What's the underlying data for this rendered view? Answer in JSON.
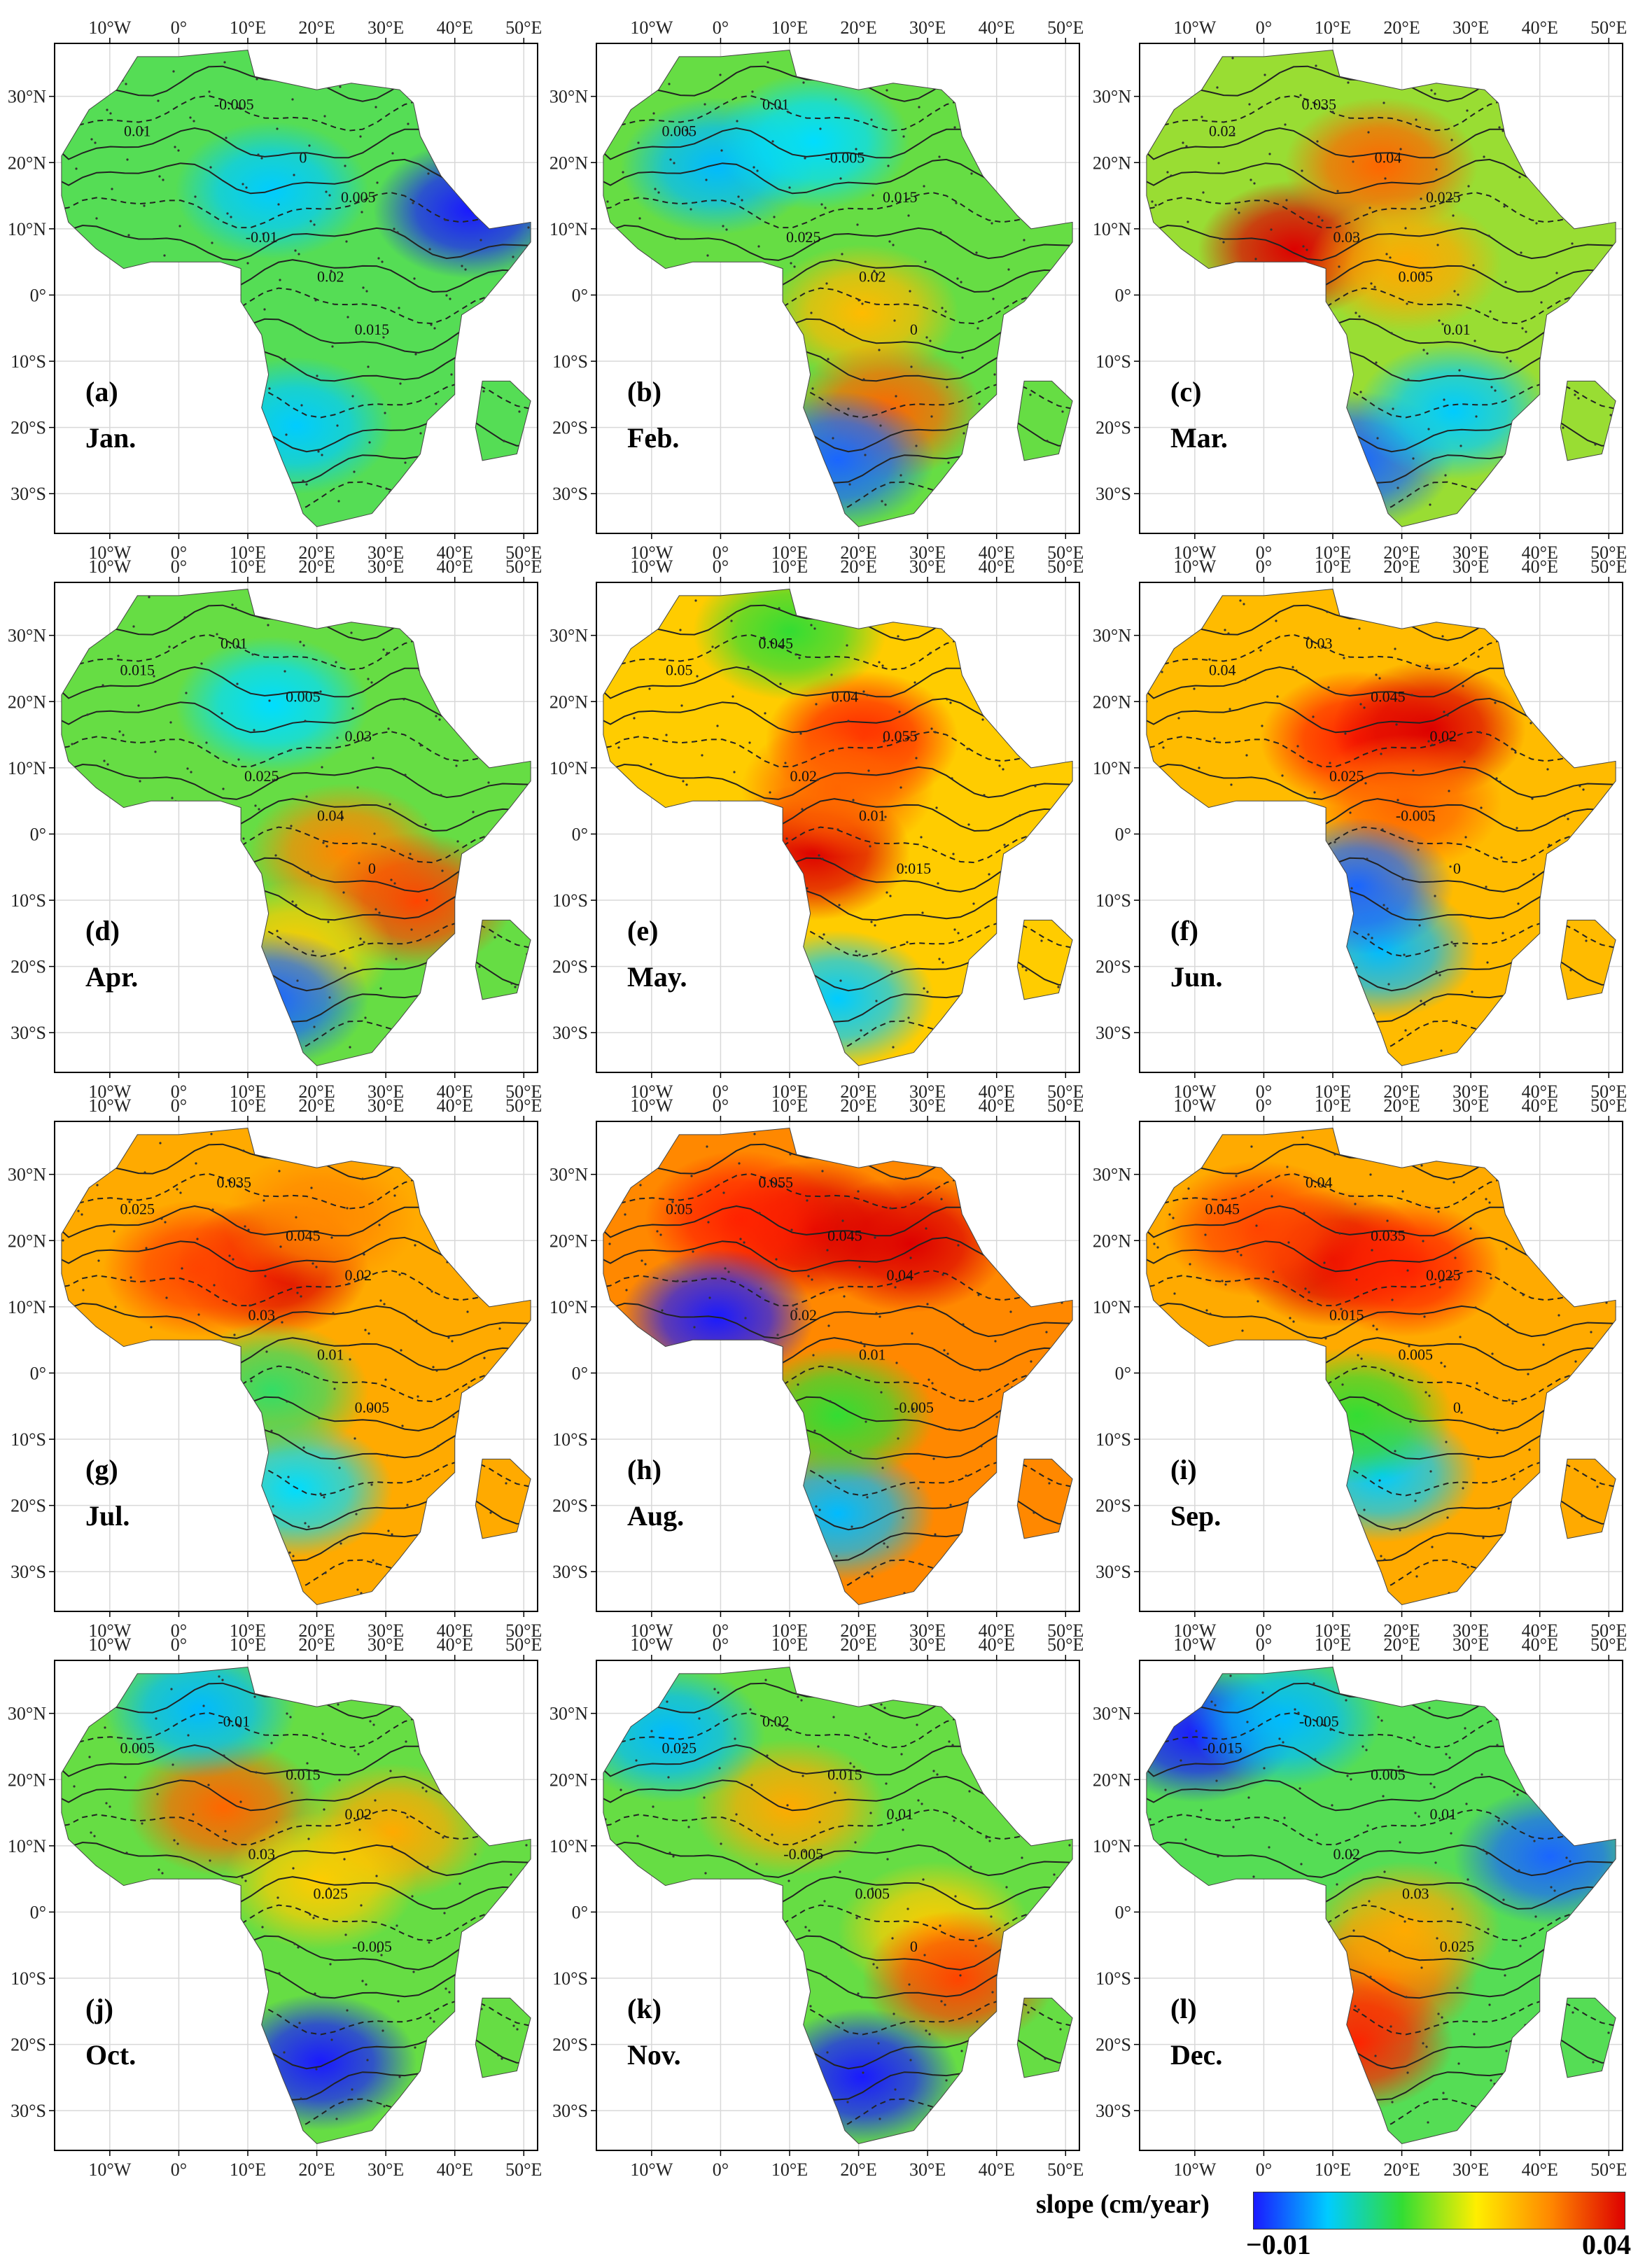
{
  "x_ticks": [
    "10°W",
    "0°",
    "10°E",
    "20°E",
    "30°E",
    "40°E",
    "50°E"
  ],
  "y_ticks": [
    "30°N",
    "20°N",
    "10°N",
    "0°",
    "10°S",
    "20°S",
    "30°S"
  ],
  "colorbar": {
    "title": "slope (cm/year)",
    "min_label": "−0.01",
    "max_label": "0.04",
    "colors": [
      "#1a1aff",
      "#00ccff",
      "#33dd33",
      "#ffee00",
      "#ff8800",
      "#dd0000"
    ]
  },
  "panels": [
    {
      "id": "a",
      "label": "(a)",
      "month": "Jan.",
      "tone": "#55dd55",
      "contours": [
        "0.01",
        "-0.005",
        "0",
        "0.005",
        "-0.01",
        "0.02",
        "0.015"
      ],
      "hot": [
        [
          0.25,
          0.85,
          "#ffcc00"
        ]
      ],
      "cold": [
        [
          0.86,
          0.34,
          "#1a1aff"
        ],
        [
          0.45,
          0.3,
          "#00ccff"
        ],
        [
          0.5,
          0.78,
          "#00ccff"
        ]
      ]
    },
    {
      "id": "b",
      "label": "(b)",
      "month": "Feb.",
      "tone": "#66dd44",
      "contours": [
        "0.005",
        "0.01",
        "-0.005",
        "0.015",
        "0.025",
        "0.02",
        "0"
      ],
      "hot": [
        [
          0.55,
          0.55,
          "#ffbb00"
        ],
        [
          0.6,
          0.75,
          "#ff6600"
        ]
      ],
      "cold": [
        [
          0.25,
          0.25,
          "#00bbff"
        ],
        [
          0.45,
          0.2,
          "#00ddff"
        ],
        [
          0.5,
          0.85,
          "#1a66ff"
        ]
      ]
    },
    {
      "id": "c",
      "label": "(c)",
      "month": "Mar.",
      "tone": "#99dd33",
      "contours": [
        "0.02",
        "0.035",
        "0.04",
        "0.025",
        "0.03",
        "0.005",
        "0.01"
      ],
      "hot": [
        [
          0.32,
          0.42,
          "#dd0000"
        ],
        [
          0.5,
          0.25,
          "#ff6600"
        ],
        [
          0.55,
          0.45,
          "#ffaa00"
        ]
      ],
      "cold": [
        [
          0.45,
          0.85,
          "#1a66ff"
        ],
        [
          0.65,
          0.75,
          "#00ccff"
        ]
      ]
    },
    {
      "id": "d",
      "label": "(d)",
      "month": "Apr.",
      "tone": "#66dd44",
      "contours": [
        "0.015",
        "0.01",
        "0.005",
        "0.03",
        "0.025",
        "0.04",
        "0"
      ],
      "hot": [
        [
          0.6,
          0.55,
          "#ff8800"
        ],
        [
          0.75,
          0.65,
          "#ff4400"
        ],
        [
          0.5,
          0.75,
          "#ffcc00"
        ]
      ],
      "cold": [
        [
          0.45,
          0.25,
          "#00ddff"
        ],
        [
          0.45,
          0.85,
          "#1a66ff"
        ]
      ]
    },
    {
      "id": "e",
      "label": "(e)",
      "month": "May.",
      "tone": "#ffcc00",
      "contours": [
        "0.05",
        "0.045",
        "0.04",
        "0.055",
        "0.02",
        "0.01",
        "0.015"
      ],
      "hot": [
        [
          0.45,
          0.55,
          "#dd0000"
        ],
        [
          0.55,
          0.32,
          "#ff2200"
        ],
        [
          0.5,
          0.42,
          "#ff6600"
        ]
      ],
      "cold": [
        [
          0.4,
          0.1,
          "#33dd33"
        ],
        [
          0.5,
          0.85,
          "#00ccff"
        ]
      ]
    },
    {
      "id": "f",
      "label": "(f)",
      "month": "Jun.",
      "tone": "#ffbb00",
      "contours": [
        "0.04",
        "0.03",
        "0.045",
        "0.02",
        "0.025",
        "-0.005",
        "0"
      ],
      "hot": [
        [
          0.45,
          0.32,
          "#ff2200"
        ],
        [
          0.6,
          0.3,
          "#dd0000"
        ],
        [
          0.55,
          0.45,
          "#ff6600"
        ]
      ],
      "cold": [
        [
          0.5,
          0.75,
          "#00bbff"
        ],
        [
          0.45,
          0.62,
          "#1a66ff"
        ]
      ]
    },
    {
      "id": "g",
      "label": "(g)",
      "month": "Jul.",
      "tone": "#ffaa00",
      "contours": [
        "0.025",
        "0.035",
        "0.045",
        "0.02",
        "0.03",
        "0.01",
        "0.005"
      ],
      "hot": [
        [
          0.45,
          0.3,
          "#dd0000"
        ],
        [
          0.3,
          0.3,
          "#ff4400"
        ],
        [
          0.55,
          0.2,
          "#ff8800"
        ]
      ],
      "cold": [
        [
          0.5,
          0.75,
          "#00ddff"
        ],
        [
          0.45,
          0.55,
          "#33dd66"
        ]
      ]
    },
    {
      "id": "h",
      "label": "(h)",
      "month": "Aug.",
      "tone": "#ff8800",
      "contours": [
        "0.05",
        "0.055",
        "0.045",
        "0.04",
        "0.02",
        "0.01",
        "-0.005"
      ],
      "hot": [
        [
          0.45,
          0.22,
          "#dd0000"
        ],
        [
          0.65,
          0.25,
          "#dd0000"
        ],
        [
          0.3,
          0.2,
          "#ff2200"
        ]
      ],
      "cold": [
        [
          0.25,
          0.4,
          "#1a1aff"
        ],
        [
          0.5,
          0.8,
          "#00bbff"
        ],
        [
          0.5,
          0.6,
          "#33dd33"
        ]
      ]
    },
    {
      "id": "i",
      "label": "(i)",
      "month": "Sep.",
      "tone": "#ffaa00",
      "contours": [
        "0.045",
        "0.04",
        "0.035",
        "0.025",
        "0.015",
        "0.005",
        "0"
      ],
      "hot": [
        [
          0.4,
          0.28,
          "#dd0000"
        ],
        [
          0.25,
          0.22,
          "#ff4400"
        ],
        [
          0.55,
          0.3,
          "#ff2200"
        ]
      ],
      "cold": [
        [
          0.5,
          0.72,
          "#00ccff"
        ],
        [
          0.45,
          0.6,
          "#33dd33"
        ]
      ]
    },
    {
      "id": "j",
      "label": "(j)",
      "month": "Oct.",
      "tone": "#66dd44",
      "contours": [
        "0.005",
        "-0.01",
        "0.015",
        "0.02",
        "0.03",
        "0.025",
        "-0.005"
      ],
      "hot": [
        [
          0.35,
          0.3,
          "#ff6600"
        ],
        [
          0.7,
          0.35,
          "#ffaa00"
        ],
        [
          0.55,
          0.45,
          "#ffcc00"
        ]
      ],
      "cold": [
        [
          0.3,
          0.1,
          "#00bbff"
        ],
        [
          0.55,
          0.82,
          "#1a1aff"
        ]
      ]
    },
    {
      "id": "k",
      "label": "(k)",
      "month": "Nov.",
      "tone": "#66dd44",
      "contours": [
        "0.025",
        "0.02",
        "0.015",
        "0.01",
        "-0.005",
        "0.005",
        "0"
      ],
      "hot": [
        [
          0.4,
          0.3,
          "#ffaa00"
        ],
        [
          0.7,
          0.55,
          "#ffcc00"
        ],
        [
          0.75,
          0.65,
          "#ff4400"
        ]
      ],
      "cold": [
        [
          0.15,
          0.15,
          "#00bbff"
        ],
        [
          0.55,
          0.85,
          "#1a1aff"
        ]
      ]
    },
    {
      "id": "l",
      "label": "(l)",
      "month": "Dec.",
      "tone": "#55dd55",
      "contours": [
        "-0.015",
        "-0.005",
        "0.005",
        "0.01",
        "0.02",
        "0.03",
        "0.025"
      ],
      "hot": [
        [
          0.5,
          0.65,
          "#ff6600"
        ],
        [
          0.55,
          0.55,
          "#ffaa00"
        ],
        [
          0.45,
          0.78,
          "#ff2200"
        ]
      ],
      "cold": [
        [
          0.12,
          0.15,
          "#1a1aff"
        ],
        [
          0.3,
          0.12,
          "#00bbff"
        ],
        [
          0.85,
          0.4,
          "#1a66ff"
        ]
      ]
    }
  ]
}
